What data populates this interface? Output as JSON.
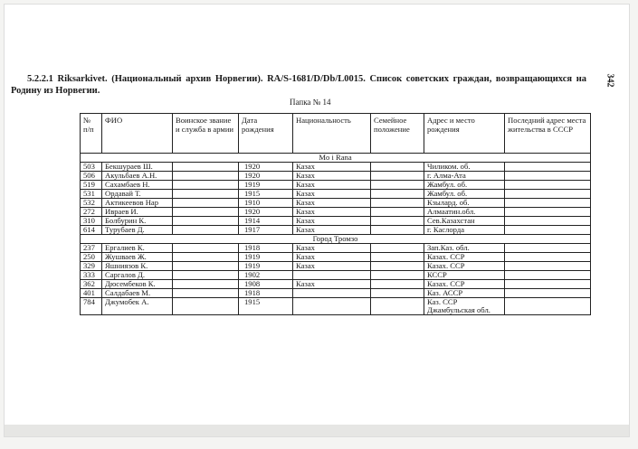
{
  "title": "5.2.2.1 Riksarkivet. (Национальный архив Норвегии). RA/S-1681/D/Db/L0015. Список советских граждан, возвращающихся на Родину из Норвегии.",
  "page_number": "342",
  "folder": "Папка № 14",
  "headers": [
    "№ п/п",
    "ФИО",
    "Воинское звание и служба в армии",
    "Дата рождения",
    "Национальность",
    "Семейное положение",
    "Адрес и место рождения",
    "Последний адрес места жительства в СССР"
  ],
  "sections": [
    {
      "name": "Mo i Rana",
      "rows": [
        [
          "503",
          "Бекшураев Ш.",
          "",
          "1920",
          "Казах",
          "",
          "Чиликом. об.",
          ""
        ],
        [
          "506",
          "Акульбаев А.Н.",
          "",
          "1920",
          "Казах",
          "",
          "г. Алма-Ата",
          ""
        ],
        [
          "519",
          "Сахамбаев Н.",
          "",
          "1919",
          "Казах",
          "",
          "Жамбул. об.",
          ""
        ],
        [
          "531",
          "Ордавай Т.",
          "",
          "1915",
          "Казах",
          "",
          "Жамбул. об.",
          ""
        ],
        [
          "532",
          "Актикеевов Нар",
          "",
          "1910",
          "Казах",
          "",
          "Кзылард. об.",
          ""
        ],
        [
          "272",
          "Ивраев И.",
          "",
          "1920",
          "Казах",
          "",
          "Алмаатин.обл.",
          ""
        ],
        [
          "310",
          "Болбурин К.",
          "",
          "1914",
          "Казах",
          "",
          "Сев.Казахстан",
          ""
        ],
        [
          "614",
          "Турубаев Д.",
          "",
          "1917",
          "Казах",
          "",
          "г. Каслорда",
          ""
        ]
      ]
    },
    {
      "name": "Город Тромзо",
      "rows": [
        [
          "237",
          "Ергалиев К.",
          "",
          "1918",
          "Казах",
          "",
          "Зап.Каз. обл.",
          ""
        ],
        [
          "250",
          "Жушваев Ж.",
          "",
          "1919",
          "Казах",
          "",
          "Казах. ССР",
          ""
        ],
        [
          "329",
          "Яшниязов К.",
          "",
          "1919",
          "Казах",
          "",
          "Казах. ССР",
          ""
        ],
        [
          "333",
          "Саргалов Д.",
          "",
          "1902",
          "",
          "",
          "КССР",
          ""
        ],
        [
          "362",
          "Дюсембеков К.",
          "",
          "1908",
          "Казах",
          "",
          "Казах. ССР",
          ""
        ],
        [
          "401",
          "Салдабаев М.",
          "",
          "1918",
          "",
          "",
          "Каз. АССР",
          ""
        ],
        [
          "784",
          "Джумобек А.",
          "",
          "1915",
          "",
          "",
          "Каз. ССР Джамбульская обл.",
          ""
        ]
      ]
    }
  ]
}
